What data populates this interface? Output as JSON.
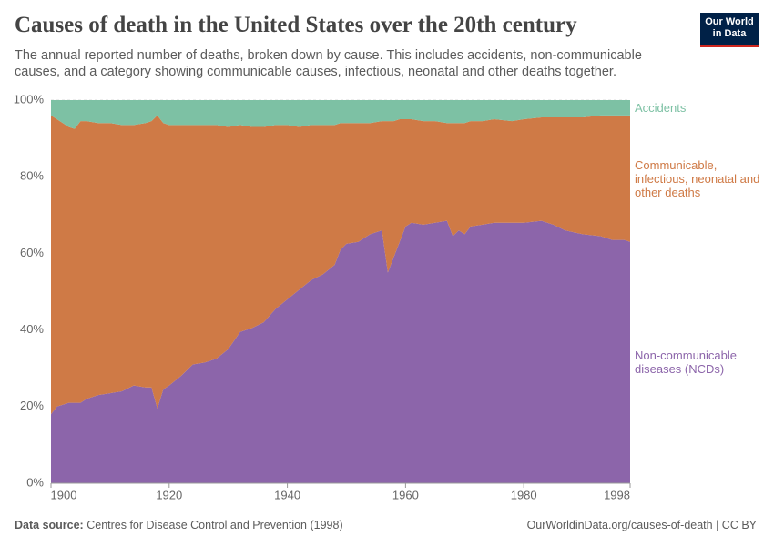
{
  "header": {
    "logo": "Our World in Data"
  },
  "chart_data": {
    "type": "stacked-area",
    "title": "Causes of death in the United States over the 20th century",
    "subtitle": "The annual reported number of deaths, broken down by cause. This includes accidents, non-communicable causes, and a category showing communicable causes, infectious, neonatal and other deaths together.",
    "x": [
      1900,
      1901,
      1902,
      1903,
      1904,
      1905,
      1906,
      1908,
      1910,
      1912,
      1914,
      1916,
      1917,
      1918,
      1919,
      1920,
      1922,
      1924,
      1926,
      1928,
      1930,
      1932,
      1934,
      1936,
      1938,
      1940,
      1942,
      1944,
      1946,
      1948,
      1949,
      1950,
      1952,
      1954,
      1956,
      1957,
      1958,
      1959,
      1960,
      1961,
      1963,
      1965,
      1967,
      1968,
      1969,
      1970,
      1971,
      1973,
      1975,
      1978,
      1980,
      1983,
      1985,
      1987,
      1990,
      1993,
      1995,
      1997,
      1998
    ],
    "series": [
      {
        "name": "Non-communicable diseases (NCDs)",
        "color": "#8c65aa",
        "values": [
          18,
          20,
          20.5,
          21,
          21,
          21,
          22,
          23,
          23.5,
          24,
          25.5,
          25,
          25,
          19.5,
          24.5,
          25.5,
          28,
          31,
          31.5,
          32.5,
          35,
          39.5,
          40.5,
          42,
          45.5,
          48,
          50.5,
          53,
          54.5,
          57,
          61,
          62.5,
          63,
          65,
          66,
          55,
          59,
          63,
          67,
          68,
          67.5,
          68,
          68.5,
          64.5,
          66,
          65,
          67,
          67.5,
          68,
          68,
          68,
          68.5,
          67.5,
          66,
          65,
          64.5,
          63.5,
          63.5,
          63
        ]
      },
      {
        "name": "Communicable, infectious, neonatal and other deaths",
        "color": "#cf7a46",
        "values": [
          78,
          75,
          73.5,
          72,
          71.5,
          73.5,
          72.5,
          71,
          70.5,
          69.5,
          68,
          69,
          69.5,
          76.5,
          69.5,
          68,
          65.5,
          62.5,
          62,
          61,
          58,
          54,
          52.5,
          51,
          48,
          45.5,
          42.5,
          40.5,
          39,
          36.5,
          33,
          31.5,
          31,
          29,
          28.5,
          39.5,
          35.5,
          32,
          28,
          27,
          27,
          26.5,
          25.5,
          29.5,
          28,
          29,
          27.5,
          27,
          27,
          26.5,
          27,
          27,
          28,
          29.5,
          30.5,
          31.5,
          32.5,
          32.5,
          33
        ]
      },
      {
        "name": "Accidents",
        "color": "#7dc1a4",
        "values": [
          4,
          5,
          6,
          7,
          7.5,
          5.5,
          5.5,
          6,
          6,
          6.5,
          6.5,
          6,
          5.5,
          4,
          6,
          6.5,
          6.5,
          6.5,
          6.5,
          6.5,
          7,
          6.5,
          7,
          7,
          6.5,
          6.5,
          7,
          6.5,
          6.5,
          6.5,
          6,
          6,
          6,
          6,
          5.5,
          5.5,
          5.5,
          5,
          5,
          5,
          5.5,
          5.5,
          6,
          6,
          6,
          6,
          5.5,
          5.5,
          5,
          5.5,
          5,
          4.5,
          4.5,
          4.5,
          4.5,
          4,
          4,
          4,
          4
        ]
      }
    ],
    "xlim": [
      1900,
      1998
    ],
    "xticks": [
      1900,
      1920,
      1940,
      1960,
      1980,
      1998
    ],
    "ylim": [
      0,
      100
    ],
    "yticks": [
      {
        "value": 0,
        "label": "0%"
      },
      {
        "value": 20,
        "label": "20%"
      },
      {
        "value": 40,
        "label": "40%"
      },
      {
        "value": 60,
        "label": "60%"
      },
      {
        "value": 80,
        "label": "80%"
      },
      {
        "value": 100,
        "label": "100%"
      }
    ],
    "grid": true
  },
  "footer": {
    "source_label": "Data source:",
    "source": "Centres for Disease Control and Prevention (1998)",
    "url": "OurWorldinData.org/causes-of-death | CC BY"
  }
}
